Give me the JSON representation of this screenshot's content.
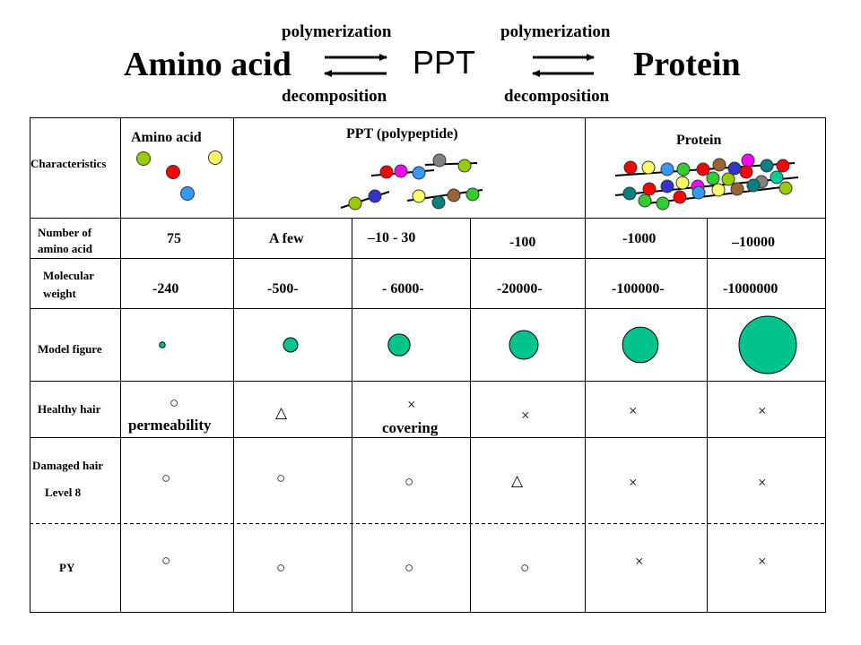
{
  "colors": {
    "model_fill": "#00c48c",
    "dot_yellowgreen": "#99cc00",
    "dot_red": "#ff0000",
    "dot_yellow": "#ffff66",
    "dot_blue": "#3399ff",
    "dot_magenta": "#ff00ff",
    "dot_gray": "#808080",
    "dot_darkblue": "#3333cc",
    "dot_teal": "#008080",
    "dot_brown": "#996633",
    "dot_green": "#33cc33",
    "cyan": "#00cc99"
  },
  "reaction": {
    "left": "Amino acid",
    "middle": "PPT",
    "right": "Protein",
    "forward_label_1": "polymerization",
    "backward_label_1": "decomposition",
    "forward_label_2": "polymerization",
    "backward_label_2": "decomposition"
  },
  "table": {
    "row_labels": {
      "characteristics": "Characteristics",
      "number_1": "Number of",
      "number_2": "amino acid",
      "weight_1": "Molecular",
      "weight_2": "weight",
      "model": "Model figure",
      "healthy": "Healthy hair",
      "damaged_1": "Damaged hair",
      "damaged_2": "Level 8",
      "py": "PY"
    },
    "headers": {
      "amino": "Amino acid",
      "ppt": "PPT (polypeptide)",
      "protein": "Protein"
    },
    "number_of_amino_acid": [
      "75",
      "A few",
      "–10 - 30",
      "-100",
      "-1000",
      "–10000"
    ],
    "molecular_weight": [
      "-240",
      "-500-",
      "- 6000-",
      "-20000-",
      "-100000-",
      "-1000000"
    ],
    "model_figure_relative_size": [
      0.1,
      0.25,
      0.38,
      0.5,
      0.62,
      1.0
    ],
    "healthy_hair": [
      "○",
      "△",
      "×",
      "×",
      "×",
      "×"
    ],
    "healthy_notes": {
      "permeability": "permeability",
      "covering": "covering"
    },
    "damaged_hair": [
      "○",
      "○",
      "○",
      "△",
      "×",
      "×"
    ],
    "py": [
      "○",
      "○",
      "○",
      "○",
      "×",
      "×"
    ]
  }
}
